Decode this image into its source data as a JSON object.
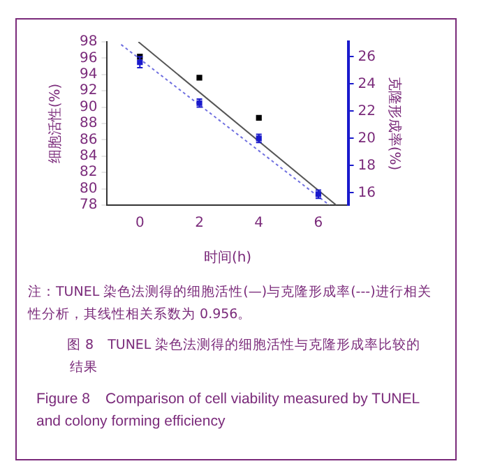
{
  "chart_data": {
    "type": "scatter",
    "xlabel": "时间(h)",
    "ylabel": "细胞活性(%)",
    "y2label": "克隆形成率(%)",
    "xlim": [
      -1.1,
      7
    ],
    "xticks": [
      0,
      2,
      4,
      6
    ],
    "ylim": [
      78,
      98
    ],
    "yticks": [
      78,
      80,
      82,
      84,
      86,
      88,
      90,
      92,
      94,
      96,
      98
    ],
    "y2lim": [
      15.1,
      27.1
    ],
    "y2ticks": [
      16,
      18,
      20,
      22,
      24,
      26
    ],
    "grid": false,
    "legend": false,
    "marker": "square",
    "series": [
      {
        "type": "scatter",
        "color": "#000000",
        "x": [
          0,
          2,
          4
        ],
        "values": [
          96.2,
          93.6,
          88.7
        ]
      },
      {
        "type": "scatter",
        "axis": "y2",
        "color": "#1a1acc",
        "x": [
          0,
          2,
          4,
          6
        ],
        "values": [
          25.6,
          22.6,
          20.0,
          15.9
        ],
        "errors": [
          0.4,
          0.3,
          0.3,
          0.3
        ]
      },
      {
        "type": "line",
        "color": "#555555",
        "line_style": "solid",
        "marker": "none",
        "x": [
          -0.05,
          6.6
        ],
        "values": [
          98,
          78
        ]
      },
      {
        "type": "line",
        "axis": "y2",
        "color": "#7070e0",
        "line_style": "dotted",
        "marker": "none",
        "x": [
          -0.63,
          6.37
        ],
        "values": [
          26.9,
          15.1
        ]
      }
    ],
    "annotations": [
      "注：TUNEL 染色法测得的细胞活性(—)与克隆形成率(---)进行相关性分析，其线性相关系数为 0.956。",
      "图 8　TUNEL 染色法测得的细胞活性与克隆形成率比较的结果",
      "Figure 8　Comparison of cell viability measured by TUNEL and colony forming efficiency"
    ]
  }
}
